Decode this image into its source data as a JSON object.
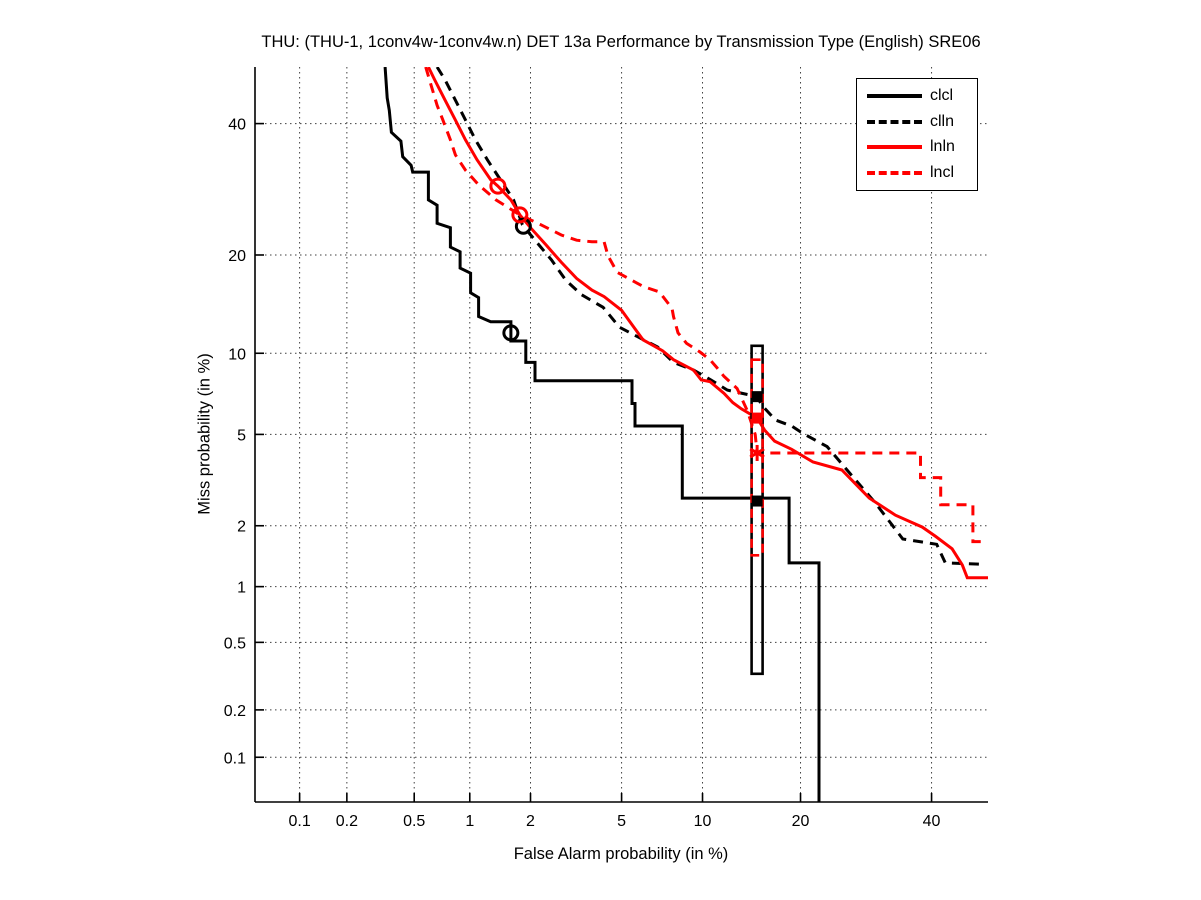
{
  "title": "THU: (THU-1, 1conv4w-1conv4w.n) DET 13a Performance by Transmission Type (English) SRE06",
  "chart_data": {
    "type": "line",
    "subtype": "DET-curve (normal-deviate probit scale on both axes)",
    "title": "THU: (THU-1, 1conv4w-1conv4w.n) DET 13a Performance by Transmission Type (English) SRE06",
    "xlabel": "False Alarm probability (in %)",
    "ylabel": "Miss probability (in %)",
    "xlim": [
      0.05,
      50
    ],
    "ylim": [
      0.05,
      50
    ],
    "xticks": [
      0.1,
      0.2,
      0.5,
      1,
      2,
      5,
      10,
      20,
      40
    ],
    "yticks": [
      0.1,
      0.2,
      0.5,
      1,
      2,
      5,
      10,
      20,
      40
    ],
    "xtick_labels": [
      "0.1",
      "0.2",
      "0.5",
      "1",
      "2",
      "5",
      "10",
      "20",
      "40"
    ],
    "ytick_labels": [
      "0.1",
      "0.2",
      "0.5",
      "1",
      "2",
      "5",
      "10",
      "20",
      "40"
    ],
    "grid": "dotted",
    "legend_position": "top-right",
    "colors": {
      "black": "#000000",
      "red": "#ff0000"
    },
    "series": [
      {
        "name": "clcl",
        "color": "#000000",
        "style": "solid",
        "points": [
          [
            0.34,
            50
          ],
          [
            0.35,
            44.5
          ],
          [
            0.36,
            42.3
          ],
          [
            0.37,
            38.5
          ],
          [
            0.42,
            37.0
          ],
          [
            0.43,
            34.4
          ],
          [
            0.48,
            33.0
          ],
          [
            0.49,
            31.9
          ],
          [
            0.6,
            31.9
          ],
          [
            0.6,
            27.6
          ],
          [
            0.67,
            26.8
          ],
          [
            0.67,
            24.2
          ],
          [
            0.79,
            23.6
          ],
          [
            0.79,
            21.0
          ],
          [
            0.89,
            20.4
          ],
          [
            0.89,
            18.4
          ],
          [
            1.01,
            17.8
          ],
          [
            1.01,
            15.6
          ],
          [
            1.11,
            15.1
          ],
          [
            1.11,
            13.2
          ],
          [
            1.28,
            12.7
          ],
          [
            1.61,
            12.7
          ],
          [
            1.61,
            11.0
          ],
          [
            1.9,
            11.0
          ],
          [
            1.9,
            9.3
          ],
          [
            2.1,
            9.3
          ],
          [
            2.1,
            8.0
          ],
          [
            5.5,
            8.0
          ],
          [
            5.5,
            6.6
          ],
          [
            5.65,
            6.6
          ],
          [
            5.65,
            5.4
          ],
          [
            8.5,
            5.4
          ],
          [
            8.5,
            2.68
          ],
          [
            18.6,
            2.68
          ],
          [
            18.6,
            1.32
          ],
          [
            22.4,
            1.32
          ],
          [
            22.4,
            0.05
          ]
        ]
      },
      {
        "name": "clln",
        "color": "#000000",
        "style": "dashed",
        "points": [
          [
            0.67,
            50
          ],
          [
            0.74,
            47.7
          ],
          [
            0.84,
            44.1
          ],
          [
            0.95,
            40.6
          ],
          [
            1.07,
            37.2
          ],
          [
            1.23,
            33.9
          ],
          [
            1.43,
            30.7
          ],
          [
            1.66,
            27.6
          ],
          [
            1.83,
            24.0
          ],
          [
            2.1,
            21.9
          ],
          [
            2.5,
            19.4
          ],
          [
            2.9,
            17.0
          ],
          [
            3.4,
            15.4
          ],
          [
            4.2,
            14.1
          ],
          [
            4.9,
            12.2
          ],
          [
            6.1,
            11.1
          ],
          [
            6.9,
            10.5
          ],
          [
            7.9,
            9.3
          ],
          [
            9.3,
            8.75
          ],
          [
            10.6,
            8.1
          ],
          [
            12.1,
            7.4
          ],
          [
            13.5,
            7.2
          ],
          [
            15.0,
            7.0
          ],
          [
            15.5,
            6.5
          ],
          [
            17.0,
            5.7
          ],
          [
            18.9,
            5.4
          ],
          [
            20.2,
            5.07
          ],
          [
            23.5,
            4.46
          ],
          [
            26.7,
            3.46
          ],
          [
            30.6,
            2.56
          ],
          [
            35.1,
            1.73
          ],
          [
            40.9,
            1.63
          ],
          [
            42.4,
            1.32
          ],
          [
            49.5,
            1.3
          ]
        ]
      },
      {
        "name": "lnln",
        "color": "#ff0000",
        "style": "solid",
        "points": [
          [
            0.6,
            50
          ],
          [
            0.65,
            47.7
          ],
          [
            0.74,
            44.1
          ],
          [
            0.84,
            40.6
          ],
          [
            0.95,
            37.2
          ],
          [
            1.09,
            33.9
          ],
          [
            1.28,
            30.7
          ],
          [
            1.39,
            29.7
          ],
          [
            1.61,
            27.6
          ],
          [
            1.78,
            25.4
          ],
          [
            2.0,
            23.6
          ],
          [
            2.36,
            21.3
          ],
          [
            2.77,
            19.1
          ],
          [
            3.24,
            17.2
          ],
          [
            3.77,
            15.9
          ],
          [
            4.24,
            15.2
          ],
          [
            5.0,
            13.8
          ],
          [
            6.07,
            11.1
          ],
          [
            7.2,
            10.2
          ],
          [
            7.9,
            9.5
          ],
          [
            9.3,
            8.75
          ],
          [
            9.9,
            8.06
          ],
          [
            10.6,
            7.95
          ],
          [
            11.8,
            7.2
          ],
          [
            12.6,
            6.65
          ],
          [
            13.4,
            6.3
          ],
          [
            15.0,
            5.8
          ],
          [
            15.8,
            5.2
          ],
          [
            16.9,
            4.7
          ],
          [
            18.9,
            4.35
          ],
          [
            21.6,
            3.85
          ],
          [
            25.6,
            3.56
          ],
          [
            29.7,
            2.68
          ],
          [
            33.9,
            2.24
          ],
          [
            38.4,
            1.97
          ],
          [
            40.7,
            1.78
          ],
          [
            43.6,
            1.55
          ],
          [
            45.4,
            1.29
          ],
          [
            46.3,
            1.11
          ],
          [
            50.0,
            1.11
          ]
        ]
      },
      {
        "name": "lncl",
        "color": "#ff0000",
        "style": "dashed",
        "points": [
          [
            0.58,
            50
          ],
          [
            0.62,
            46.8
          ],
          [
            0.67,
            43.2
          ],
          [
            0.72,
            40.6
          ],
          [
            0.79,
            37.2
          ],
          [
            0.84,
            34.7
          ],
          [
            0.95,
            32.2
          ],
          [
            1.11,
            29.9
          ],
          [
            1.36,
            27.6
          ],
          [
            1.78,
            25.4
          ],
          [
            2.24,
            24.0
          ],
          [
            2.77,
            22.6
          ],
          [
            3.24,
            21.9
          ],
          [
            3.77,
            21.7
          ],
          [
            4.24,
            21.7
          ],
          [
            4.4,
            19.9
          ],
          [
            4.8,
            17.9
          ],
          [
            6.07,
            16.3
          ],
          [
            7.0,
            15.7
          ],
          [
            7.8,
            14.0
          ],
          [
            7.9,
            13.2
          ],
          [
            8.2,
            11.7
          ],
          [
            8.8,
            10.8
          ],
          [
            9.8,
            10.1
          ],
          [
            10.6,
            9.5
          ],
          [
            11.2,
            8.9
          ],
          [
            11.8,
            8.3
          ],
          [
            13.0,
            7.5
          ],
          [
            14.0,
            6.2
          ],
          [
            14.8,
            5.0
          ],
          [
            15.0,
            4.2
          ],
          [
            38.1,
            4.2
          ],
          [
            38.1,
            3.3
          ],
          [
            41.6,
            3.3
          ],
          [
            41.6,
            2.5
          ],
          [
            47.3,
            2.5
          ],
          [
            47.3,
            1.68
          ],
          [
            49.5,
            1.68
          ]
        ]
      }
    ],
    "markers": [
      {
        "series": "clcl",
        "shape": "circle-open",
        "x": 1.61,
        "y": 11.7,
        "color": "#000000"
      },
      {
        "series": "clln",
        "shape": "circle-open",
        "x": 1.85,
        "y": 23.8,
        "color": "#000000"
      },
      {
        "series": "lnln",
        "shape": "circle-open",
        "x": 1.39,
        "y": 29.7,
        "color": "#ff0000"
      },
      {
        "series": "lncl",
        "shape": "circle-open",
        "x": 1.78,
        "y": 25.4,
        "color": "#ff0000"
      },
      {
        "series": "clln",
        "shape": "square-filled",
        "x": 15.0,
        "y": 7.0,
        "color": "#000000"
      },
      {
        "series": "clcl",
        "shape": "square-filled",
        "x": 15.0,
        "y": 2.6,
        "color": "#000000"
      },
      {
        "series": "lnln",
        "shape": "square-filled",
        "x": 15.0,
        "y": 5.8,
        "color": "#ff0000"
      },
      {
        "series": "lncl",
        "shape": "star-filled",
        "x": 15.0,
        "y": 4.2,
        "color": "#ff0000"
      }
    ],
    "error_bars": [
      {
        "series": "clcl/clln",
        "x": 15.0,
        "y_top": 10.6,
        "y_bottom": 0.33,
        "color": "#000000",
        "style": "solid"
      },
      {
        "series": "lnln/lncl",
        "x": 15.0,
        "y_top": 9.5,
        "y_bottom": 1.44,
        "color": "#ff0000",
        "style": "dashed"
      }
    ]
  },
  "legend": {
    "items": [
      {
        "label": "clcl"
      },
      {
        "label": "clln"
      },
      {
        "label": "lnln"
      },
      {
        "label": "lncl"
      }
    ]
  }
}
